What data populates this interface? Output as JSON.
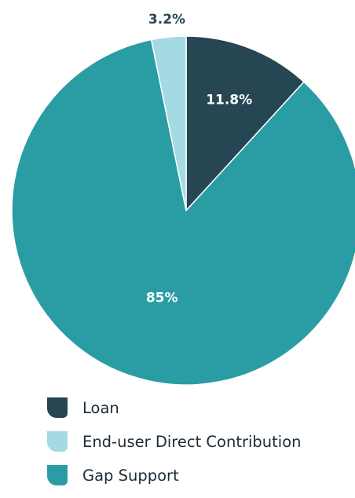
{
  "chart_data": {
    "type": "pie",
    "title": "",
    "start_angle_deg": 0,
    "direction": "clockwise",
    "slices": [
      {
        "name": "Loan",
        "value": 11.8,
        "label": "11.8%",
        "color": "#264653",
        "label_color": "#ffffff"
      },
      {
        "name": "Gap Support",
        "value": 85,
        "label": "85%",
        "color": "#2a9da4",
        "label_color": "#ffffff"
      },
      {
        "name": "End-user Direct Contribution",
        "value": 3.2,
        "label": "3.2%",
        "color": "#a3dae3",
        "label_color": "#264653"
      }
    ]
  },
  "legend": {
    "placement": "bottom-left",
    "items": [
      {
        "label": "Loan",
        "color": "#264653"
      },
      {
        "label": "End-user Direct Contribution",
        "color": "#a3dae3"
      },
      {
        "label": "Gap Support",
        "color": "#2a9da4"
      }
    ]
  }
}
